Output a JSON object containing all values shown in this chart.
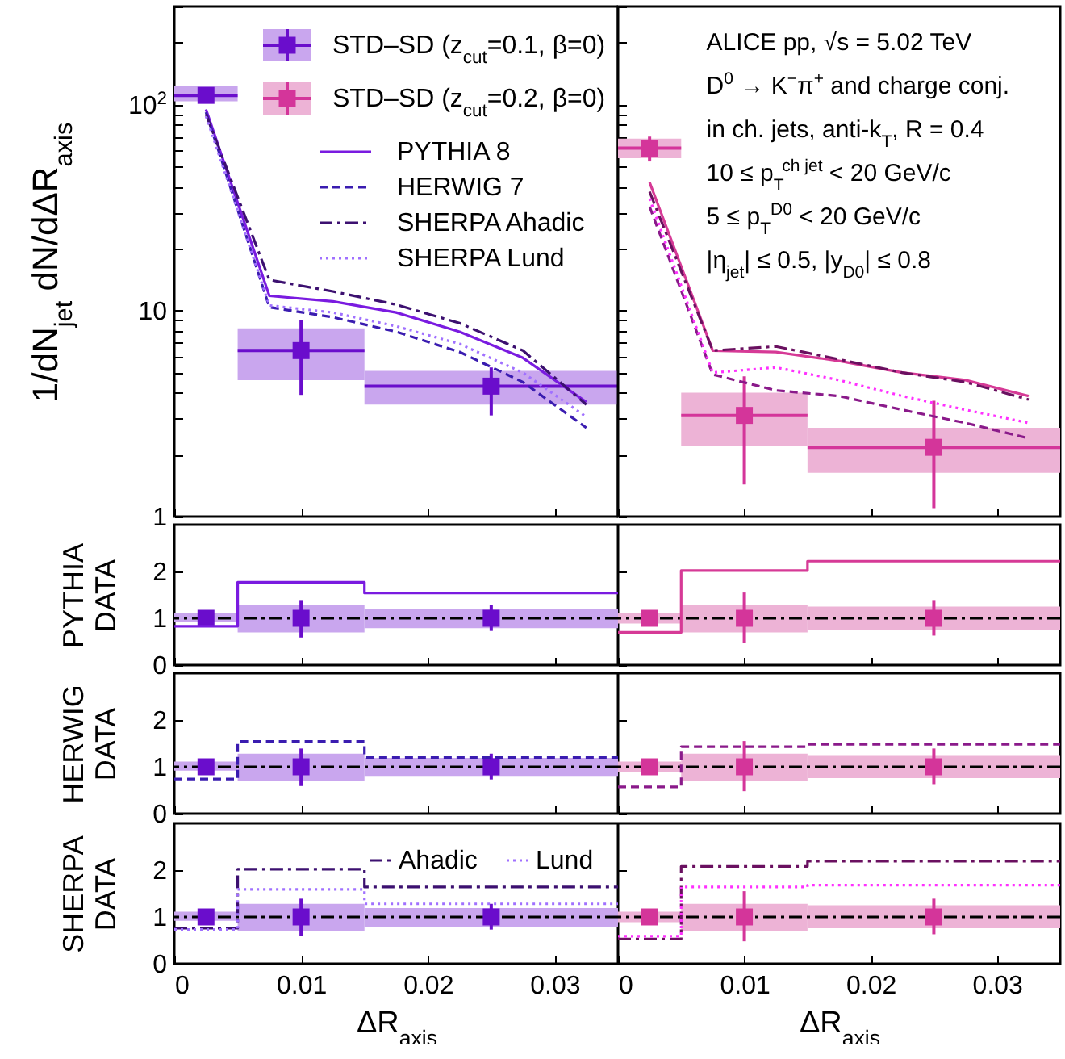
{
  "chart_data": [
    {
      "type": "line",
      "log": true,
      "xlim": [
        0,
        0.035
      ],
      "xticks": [
        0,
        0.01,
        0.02,
        0.03
      ],
      "ylim": [
        1,
        300
      ],
      "yticks": [
        1,
        {
          "value": 2,
          "label": null
        },
        {
          "value": 3,
          "label": null
        },
        {
          "value": 4,
          "label": null
        },
        {
          "value": 5,
          "label": null
        },
        {
          "value": 6,
          "label": null
        },
        {
          "value": 7,
          "label": null
        },
        {
          "value": 8,
          "label": null
        },
        {
          "value": 9,
          "label": null
        },
        10,
        {
          "value": 20,
          "label": null
        },
        {
          "value": 30,
          "label": null
        },
        {
          "value": 40,
          "label": null
        },
        {
          "value": 50,
          "label": null
        },
        {
          "value": 60,
          "label": null
        },
        {
          "value": 70,
          "label": null
        },
        {
          "value": 80,
          "label": null
        },
        {
          "value": 90,
          "label": null
        },
        {
          "value": 100,
          "label": "10$^{2}$"
        },
        {
          "value": 200,
          "label": null
        },
        {
          "value": 300,
          "label": null
        }
      ],
      "ylabel": "1/dN$_{jet}$ dN/dΔR$_{axis}$",
      "tick_labels": "y",
      "legend": "top",
      "series": [
        {
          "type": "bar",
          "color": "#c9a6ee",
          "x": [
            0.0025,
            0.01,
            0.025
          ],
          "base": [
            104,
            4.6,
            3.5
          ],
          "values": [
            20,
            3.6,
            1.6
          ]
        },
        {
          "name": "STD–SD (z$_{cut}$=0.1, β=0)",
          "type": "scatter",
          "marker": "square",
          "color": "#6a0dcc",
          "x": [
            0.0025,
            0.01,
            0.025
          ],
          "values": [
            111,
            6.4,
            4.3
          ],
          "errors": [
            [
              106,
              117
            ],
            [
              3.9,
              9.0
            ],
            [
              3.1,
              5.3
            ]
          ],
          "xerrors": [
            0.0025,
            0.005,
            0.01
          ]
        },
        {
          "name": "PYTHIA 8",
          "color": "#7a1be0",
          "line_style": "solid",
          "x": [
            0.0025,
            0.0075,
            0.0125,
            0.0175,
            0.0225,
            0.0275,
            0.0325
          ],
          "values": [
            95,
            11.8,
            11.1,
            9.8,
            7.9,
            5.9,
            3.6
          ]
        },
        {
          "name": "HERWIG 7",
          "color": "#3a1cb0",
          "line_style": "dashed",
          "x": [
            0.0025,
            0.0075,
            0.0125,
            0.0175,
            0.0225,
            0.0275,
            0.0325
          ],
          "values": [
            92,
            10.4,
            9.3,
            7.9,
            6.3,
            4.5,
            2.7
          ]
        },
        {
          "name": "SHERPA Ahadic",
          "color": "#3c1070",
          "line_style": "dashdot",
          "x": [
            0.0025,
            0.0075,
            0.0125,
            0.0175,
            0.0225,
            0.0275,
            0.0325
          ],
          "values": [
            90,
            14.1,
            12.4,
            10.7,
            8.7,
            6.4,
            3.5
          ]
        },
        {
          "name": "SHERPA Lund",
          "color": "#a070ff",
          "line_style": "dotted",
          "x": [
            0.0025,
            0.0075,
            0.0125,
            0.0175,
            0.0225,
            0.0275,
            0.0325
          ],
          "values": [
            88,
            10.6,
            9.8,
            8.4,
            6.9,
            5.0,
            3.05
          ]
        }
      ]
    },
    {
      "type": "line",
      "log": true,
      "xlim": [
        0,
        0.035
      ],
      "xticks": [
        0,
        0.01,
        0.02,
        0.03
      ],
      "ylim": [
        1,
        300
      ],
      "yticks": [
        {
          "value": 1,
          "label": null
        },
        {
          "value": 2,
          "label": null
        },
        {
          "value": 3,
          "label": null
        },
        {
          "value": 4,
          "label": null
        },
        {
          "value": 5,
          "label": null
        },
        {
          "value": 6,
          "label": null
        },
        {
          "value": 7,
          "label": null
        },
        {
          "value": 8,
          "label": null
        },
        {
          "value": 9,
          "label": null
        },
        {
          "value": 10,
          "label": null
        },
        {
          "value": 20,
          "label": null
        },
        {
          "value": 30,
          "label": null
        },
        {
          "value": 40,
          "label": null
        },
        {
          "value": 50,
          "label": null
        },
        {
          "value": 60,
          "label": null
        },
        {
          "value": 70,
          "label": null
        },
        {
          "value": 80,
          "label": null
        },
        {
          "value": 90,
          "label": null
        },
        {
          "value": 100,
          "label": null
        },
        {
          "value": 200,
          "label": null
        },
        {
          "value": 300,
          "label": null
        }
      ],
      "tick_labels": false,
      "legend": "left",
      "annotations": [
        "ALICE pp, √s = 5.02 TeV",
        "D$^{0}$ → K$^{−}$π$^{+}$ and charge conj.",
        "in ch. jets, anti-k$_{T}$, R = 0.4",
        "10 ≤ p$_{T}$$^{ch jet}$ < 20 GeV/c",
        "5 ≤ p$_{T}$$^{D0}$ < 20 GeV/c",
        "|η$_{jet}$| ≤ 0.5, |y$_{D0}$| ≤ 0.8"
      ],
      "series": [
        {
          "type": "bar",
          "color": "#edb3d6",
          "x": [
            0.0025,
            0.01,
            0.025
          ],
          "base": [
            55,
            2.2,
            1.63
          ],
          "values": [
            13.5,
            1.8,
            1.07
          ]
        },
        {
          "name": "STD–SD (z$_{cut}$=0.2, β=0)",
          "type": "scatter",
          "marker": "square",
          "color": "#d4359a",
          "x": [
            0.0025,
            0.01,
            0.025
          ],
          "values": [
            61.5,
            3.1,
            2.17
          ],
          "errors": [
            [
              53,
              70
            ],
            [
              1.43,
              4.8
            ],
            [
              1.1,
              3.65
            ]
          ],
          "xerrors": [
            0.0025,
            0.005,
            0.01
          ]
        },
        {
          "color": "#d63a96",
          "line_style": "solid",
          "x": [
            0.0025,
            0.0075,
            0.0125,
            0.0175,
            0.0225,
            0.0275,
            0.0325
          ],
          "values": [
            42,
            6.4,
            6.3,
            5.7,
            5.0,
            4.6,
            3.85
          ]
        },
        {
          "color": "#8a1a8a",
          "line_style": "dashed",
          "x": [
            0.0025,
            0.0075,
            0.0125,
            0.0175,
            0.0225,
            0.0275,
            0.0325
          ],
          "values": [
            32,
            4.9,
            4.1,
            3.85,
            3.3,
            2.85,
            2.4
          ]
        },
        {
          "color": "#6a1060",
          "line_style": "dashdot",
          "x": [
            0.0025,
            0.0075,
            0.0125,
            0.0175,
            0.0225,
            0.0275,
            0.0325
          ],
          "values": [
            37.8,
            6.4,
            6.7,
            5.8,
            5.0,
            4.5,
            3.7
          ]
        },
        {
          "color": "#ff30ff",
          "line_style": "dotted",
          "x": [
            0.0025,
            0.0075,
            0.0125,
            0.0175,
            0.0225,
            0.0275,
            0.0325
          ],
          "values": [
            35,
            5.0,
            5.3,
            4.6,
            3.85,
            3.3,
            2.85
          ]
        }
      ]
    },
    {
      "type": "step",
      "xlim": [
        0,
        0.035
      ],
      "xticks": [
        0,
        0.01,
        0.02,
        0.03
      ],
      "ylim": [
        0,
        3
      ],
      "yticks": [
        0,
        1,
        2
      ],
      "ylabel": "PYTHIA\nDATA",
      "tick_labels": "y",
      "ref_lines": [
        {
          "axis": "y",
          "value": 1,
          "color": "#000000",
          "line_style": "dashdot"
        }
      ],
      "series": [
        {
          "type": "bar",
          "color": "#c9a6ee",
          "x": [
            0.0025,
            0.01,
            0.025
          ],
          "base": [
            0.92,
            0.7,
            0.79
          ],
          "values": [
            0.19,
            0.58,
            0.4
          ]
        },
        {
          "type": "scatter",
          "marker": "square",
          "color": "#6a0dcc",
          "x": [
            0.0025,
            0.01,
            0.025
          ],
          "values": [
            1,
            1,
            1
          ],
          "errors": [
            [
              0.95,
              1.05
            ],
            [
              0.59,
              1.39
            ],
            [
              0.73,
              1.28
            ]
          ]
        },
        {
          "color": "#7a1be0",
          "line_style": "solid",
          "x": [
            0,
            0.005,
            0.015,
            0.035
          ],
          "values": [
            0.83,
            1.77,
            1.54,
            1.54
          ]
        }
      ]
    },
    {
      "type": "step",
      "xlim": [
        0,
        0.035
      ],
      "xticks": [
        0,
        0.01,
        0.02,
        0.03
      ],
      "ylim": [
        0,
        3
      ],
      "yticks": [
        0,
        1,
        2
      ],
      "tick_labels": false,
      "ref_lines": [
        {
          "axis": "y",
          "value": 1,
          "color": "#000000",
          "line_style": "dashdot"
        }
      ],
      "series": [
        {
          "type": "bar",
          "color": "#edb3d6",
          "x": [
            0.0025,
            0.01,
            0.025
          ],
          "base": [
            0.89,
            0.7,
            0.76
          ],
          "values": [
            0.22,
            0.58,
            0.49
          ]
        },
        {
          "type": "scatter",
          "marker": "square",
          "color": "#d4359a",
          "x": [
            0.0025,
            0.01,
            0.025
          ],
          "values": [
            1,
            1,
            1
          ],
          "errors": [
            [
              0.96,
              1.04
            ],
            [
              0.48,
              1.55
            ],
            [
              0.63,
              1.39
            ]
          ]
        },
        {
          "color": "#d63a96",
          "line_style": "solid",
          "x": [
            0,
            0.005,
            0.015,
            0.035
          ],
          "values": [
            0.7,
            2.02,
            2.22,
            2.22
          ]
        }
      ]
    },
    {
      "type": "step",
      "xlim": [
        0,
        0.035
      ],
      "xticks": [
        0,
        0.01,
        0.02,
        0.03
      ],
      "ylim": [
        0,
        3
      ],
      "yticks": [
        0,
        1,
        2
      ],
      "ylabel": "HERWIG\nDATA",
      "tick_labels": "y",
      "ref_lines": [
        {
          "axis": "y",
          "value": 1,
          "color": "#000000",
          "line_style": "dashdot"
        }
      ],
      "series": [
        {
          "type": "bar",
          "color": "#c9a6ee",
          "x": [
            0.0025,
            0.01,
            0.025
          ],
          "base": [
            0.92,
            0.7,
            0.79
          ],
          "values": [
            0.19,
            0.58,
            0.4
          ]
        },
        {
          "type": "scatter",
          "marker": "square",
          "color": "#6a0dcc",
          "x": [
            0.0025,
            0.01,
            0.025
          ],
          "values": [
            1,
            1,
            1
          ],
          "errors": [
            [
              0.95,
              1.05
            ],
            [
              0.59,
              1.39
            ],
            [
              0.73,
              1.28
            ]
          ]
        },
        {
          "color": "#3a1cb0",
          "line_style": "dashed",
          "x": [
            0,
            0.005,
            0.015,
            0.035
          ],
          "values": [
            0.74,
            1.54,
            1.2,
            1.2
          ]
        }
      ]
    },
    {
      "type": "step",
      "xlim": [
        0,
        0.035
      ],
      "xticks": [
        0,
        0.01,
        0.02,
        0.03
      ],
      "ylim": [
        0,
        3
      ],
      "yticks": [
        0,
        1,
        2
      ],
      "tick_labels": false,
      "ref_lines": [
        {
          "axis": "y",
          "value": 1,
          "color": "#000000",
          "line_style": "dashdot"
        }
      ],
      "series": [
        {
          "type": "bar",
          "color": "#edb3d6",
          "x": [
            0.0025,
            0.01,
            0.025
          ],
          "base": [
            0.89,
            0.7,
            0.76
          ],
          "values": [
            0.22,
            0.58,
            0.49
          ]
        },
        {
          "type": "scatter",
          "marker": "square",
          "color": "#d4359a",
          "x": [
            0.0025,
            0.01,
            0.025
          ],
          "values": [
            1,
            1,
            1
          ],
          "errors": [
            [
              0.96,
              1.04
            ],
            [
              0.48,
              1.55
            ],
            [
              0.63,
              1.39
            ]
          ]
        },
        {
          "color": "#8a1a8a",
          "line_style": "dashed",
          "x": [
            0,
            0.005,
            0.015,
            0.035
          ],
          "values": [
            0.57,
            1.43,
            1.48,
            1.48
          ]
        }
      ]
    },
    {
      "type": "step",
      "xlim": [
        0,
        0.035
      ],
      "xticks": [
        0,
        0.01,
        0.02,
        0.03
      ],
      "ylim": [
        0,
        3
      ],
      "yticks": [
        0,
        1,
        2
      ],
      "xlabel": "ΔR$_{axis}$",
      "ylabel": "SHERPA\nDATA",
      "legend": "top right",
      "ref_lines": [
        {
          "axis": "y",
          "value": 1,
          "color": "#000000",
          "line_style": "dashdot"
        }
      ],
      "series": [
        {
          "type": "bar",
          "color": "#c9a6ee",
          "x": [
            0.0025,
            0.01,
            0.025
          ],
          "base": [
            0.92,
            0.7,
            0.79
          ],
          "values": [
            0.19,
            0.58,
            0.4
          ]
        },
        {
          "type": "scatter",
          "marker": "square",
          "color": "#6a0dcc",
          "x": [
            0.0025,
            0.01,
            0.025
          ],
          "values": [
            1,
            1,
            1
          ],
          "errors": [
            [
              0.95,
              1.05
            ],
            [
              0.59,
              1.39
            ],
            [
              0.73,
              1.28
            ]
          ]
        },
        {
          "name": "Ahadic",
          "color": "#3c1070",
          "line_style": "dashdot",
          "x": [
            0,
            0.005,
            0.015,
            0.035
          ],
          "values": [
            0.76,
            2.02,
            1.64,
            1.64
          ]
        },
        {
          "name": "Lund",
          "color": "#a070ff",
          "line_style": "dotted",
          "x": [
            0,
            0.005,
            0.015,
            0.035
          ],
          "values": [
            0.73,
            1.59,
            1.28,
            1.28
          ]
        }
      ]
    },
    {
      "type": "step",
      "xlim": [
        0,
        0.035
      ],
      "xticks": [
        0,
        0.01,
        0.02,
        0.03
      ],
      "ylim": [
        0,
        3
      ],
      "yticks": [
        0,
        1,
        2
      ],
      "xlabel": "ΔR$_{axis}$",
      "tick_labels": "x",
      "ref_lines": [
        {
          "axis": "y",
          "value": 1,
          "color": "#000000",
          "line_style": "dashdot"
        }
      ],
      "series": [
        {
          "type": "bar",
          "color": "#edb3d6",
          "x": [
            0.0025,
            0.01,
            0.025
          ],
          "base": [
            0.89,
            0.7,
            0.76
          ],
          "values": [
            0.22,
            0.58,
            0.49
          ]
        },
        {
          "type": "scatter",
          "marker": "square",
          "color": "#d4359a",
          "x": [
            0.0025,
            0.01,
            0.025
          ],
          "values": [
            1,
            1,
            1
          ],
          "errors": [
            [
              0.96,
              1.04
            ],
            [
              0.48,
              1.55
            ],
            [
              0.63,
              1.39
            ]
          ]
        },
        {
          "color": "#6a1060",
          "line_style": "dashdot",
          "x": [
            0,
            0.005,
            0.015,
            0.035
          ],
          "values": [
            0.53,
            2.08,
            2.19,
            2.19
          ]
        },
        {
          "color": "#ff30ff",
          "line_style": "dotted",
          "x": [
            0,
            0.005,
            0.015,
            0.035
          ],
          "values": [
            0.59,
            1.64,
            1.68,
            1.68
          ]
        }
      ]
    }
  ]
}
